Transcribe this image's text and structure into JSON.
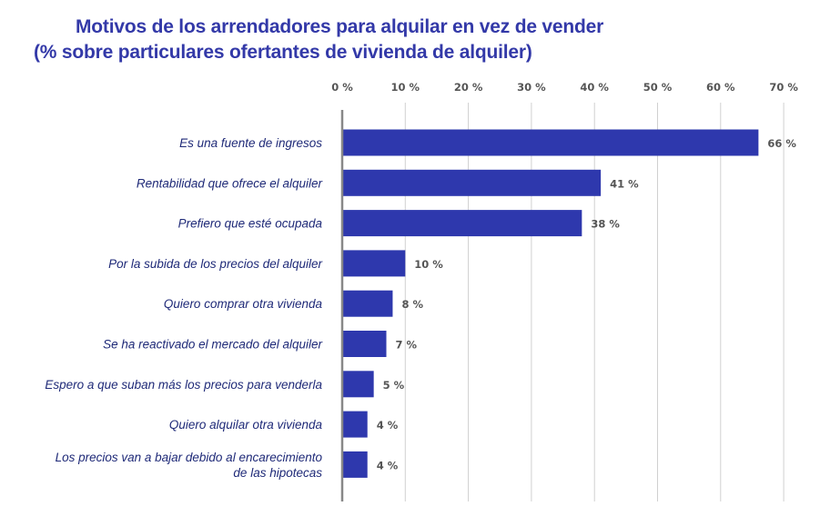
{
  "chart_data": {
    "type": "bar",
    "orientation": "horizontal",
    "title": "Motivos de los arrendadores para alquilar en vez de vender",
    "subtitle": "(% sobre particulares ofertantes de vivienda de alquiler)",
    "categories": [
      "Es una fuente de ingresos",
      "Rentabilidad que ofrece el alquiler",
      "Prefiero que esté ocupada",
      "Por la subida de los precios del alquiler",
      "Quiero comprar otra vivienda",
      "Se ha reactivado el mercado del alquiler",
      "Espero a que suban más los precios para venderla",
      "Quiero alquilar otra vivienda",
      "Los precios van a bajar debido al encarecimiento de las hipotecas"
    ],
    "category_lines": [
      [
        "Es una fuente de ingresos"
      ],
      [
        "Rentabilidad que ofrece el alquiler"
      ],
      [
        "Prefiero que esté ocupada"
      ],
      [
        "Por la subida de los precios del alquiler"
      ],
      [
        "Quiero comprar otra vivienda"
      ],
      [
        "Se ha reactivado el mercado del alquiler"
      ],
      [
        "Espero a que suban más los precios para venderla"
      ],
      [
        "Quiero alquilar otra vivienda"
      ],
      [
        "Los precios van a bajar debido al encarecimiento",
        "de las hipotecas"
      ]
    ],
    "values": [
      66,
      41,
      38,
      10,
      8,
      7,
      5,
      4,
      4
    ],
    "data_labels": [
      "66 %",
      "41 %",
      "38 %",
      "10 %",
      "8 %",
      "7 %",
      "5 %",
      "4 %",
      "4 %"
    ],
    "xlim": [
      0,
      70
    ],
    "x_ticks": [
      "0 %",
      "10 %",
      "20 %",
      "30 %",
      "40 %",
      "50 %",
      "60 %",
      "70 %"
    ],
    "x_axis_position": "top",
    "grid": true,
    "colors": {
      "bar": "#2e38ad",
      "title": "#3339a8",
      "category_text": "#1f2a78",
      "grid": "#d0d0d0",
      "axis": "#888888"
    }
  }
}
